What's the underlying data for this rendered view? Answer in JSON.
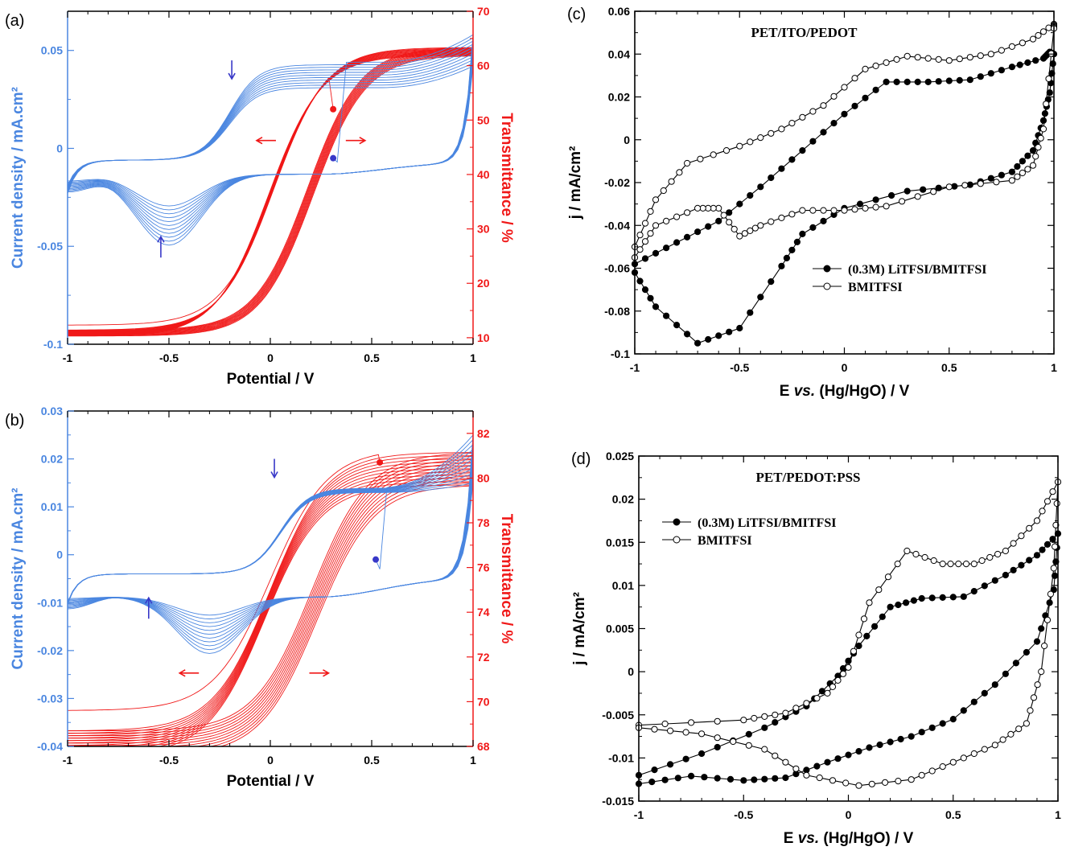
{
  "colors": {
    "blue": "#4a86e0",
    "red": "#f01818",
    "black": "#000000",
    "arrow_blue": "#3838c8"
  },
  "chart_data": [
    {
      "panel": "(a)",
      "type": "line",
      "xlabel": "Potential / V",
      "ylabel": "Current density / mA.cm²",
      "y2label": "Transmittance / %",
      "xlim": [
        -1,
        1
      ],
      "ylim": [
        -0.1,
        0.07
      ],
      "y2lim": [
        8.8,
        70
      ],
      "xticks": [
        "-1",
        "-0.5",
        "0",
        "0.5",
        "1"
      ],
      "yticks": [
        {
          "v": -0.1,
          "t": "-0.1"
        },
        {
          "v": -0.05,
          "t": "-0.05"
        },
        {
          "v": 0,
          "t": "0"
        },
        {
          "v": 0.05,
          "t": "0.05"
        }
      ],
      "y2ticks": [
        {
          "v": 10,
          "t": "10"
        },
        {
          "v": 20,
          "t": "20"
        },
        {
          "v": 30,
          "t": "30"
        },
        {
          "v": 40,
          "t": "40"
        },
        {
          "v": 50,
          "t": "50"
        },
        {
          "v": 60,
          "t": "60"
        },
        {
          "v": 70,
          "t": "70"
        }
      ],
      "cv": {
        "cycles": 11,
        "start": [
          0.31,
          -0.005
        ],
        "anodic": {
          "base": -0.006,
          "plateau_first": 0.044,
          "plateau_last": 0.031,
          "E_step": -0.2
        },
        "cathodic": {
          "peak_first": -0.047,
          "peak_last": -0.027,
          "E_peak": -0.5
        },
        "end_first": 0.058,
        "end_last": 0.042
      },
      "tr": {
        "cycles": 12,
        "start": [
          0.31,
          52
        ],
        "Tmin": 11.5,
        "Tmax": 63.5,
        "E_half_fwd": 0.18,
        "E_half_rev": 0.02,
        "width": 0.13
      },
      "annotations": [
        {
          "type": "arrow",
          "dir": "down",
          "x": -0.19,
          "y": 0.04,
          "color": "arrow_blue"
        },
        {
          "type": "arrow",
          "dir": "up",
          "x": -0.54,
          "y": -0.05,
          "color": "arrow_blue"
        },
        {
          "type": "arrow",
          "dir": "left",
          "x": -0.02,
          "y": 0.004,
          "color": "red"
        },
        {
          "type": "arrow",
          "dir": "right",
          "x": 0.42,
          "y": 0.004,
          "color": "red"
        }
      ]
    },
    {
      "panel": "(b)",
      "type": "line",
      "xlabel": "Potential / V",
      "ylabel": "Current density / mA.cm²",
      "y2label": "Transmittance / %",
      "xlim": [
        -1,
        1
      ],
      "ylim": [
        -0.04,
        0.03
      ],
      "y2lim": [
        68,
        83
      ],
      "xticks": [
        "-1",
        "-0.5",
        "0",
        "0.5",
        "1"
      ],
      "yticks": [
        {
          "v": -0.04,
          "t": "-0.04"
        },
        {
          "v": -0.03,
          "t": "-0.03"
        },
        {
          "v": -0.02,
          "t": "-0.02"
        },
        {
          "v": -0.01,
          "t": "-0.01"
        },
        {
          "v": 0,
          "t": "0"
        },
        {
          "v": 0.01,
          "t": "0.01"
        },
        {
          "v": 0.02,
          "t": "0.02"
        },
        {
          "v": 0.03,
          "t": "0.03"
        }
      ],
      "y2ticks": [
        {
          "v": 68,
          "t": "68"
        },
        {
          "v": 70,
          "t": "70"
        },
        {
          "v": 72,
          "t": "72"
        },
        {
          "v": 74,
          "t": "74"
        },
        {
          "v": 76,
          "t": "76"
        },
        {
          "v": 78,
          "t": "78"
        },
        {
          "v": 80,
          "t": "80"
        },
        {
          "v": 82,
          "t": "82"
        }
      ],
      "cv": {
        "cycles": 11,
        "start": [
          0.52,
          -0.001
        ],
        "anodic": {
          "base": -0.004,
          "plateau_first": 0.014,
          "plateau_last": 0.013,
          "E_step": 0.05
        },
        "cathodic": {
          "peak_first": -0.019,
          "peak_last": -0.011,
          "E_peak": -0.3
        },
        "end_first": 0.025,
        "end_last": 0.015
      },
      "tr": {
        "cycles": 12,
        "start": [
          0.54,
          80.7
        ],
        "Tmin": 68.8,
        "Tmax": 81.3,
        "E_half_fwd": 0.2,
        "E_half_rev": 0.0,
        "width": 0.14
      },
      "annotations": [
        {
          "type": "arrow",
          "dir": "down",
          "x": 0.02,
          "y": 0.018,
          "color": "arrow_blue"
        },
        {
          "type": "arrow",
          "dir": "up",
          "x": -0.6,
          "y": -0.011,
          "color": "arrow_blue"
        },
        {
          "type": "arrow",
          "dir": "left",
          "x": -0.4,
          "y": -0.0247,
          "color": "red"
        },
        {
          "type": "arrow",
          "dir": "right",
          "x": 0.24,
          "y": -0.0247,
          "color": "red"
        }
      ]
    },
    {
      "panel": "(c)",
      "type": "line",
      "title": "PET/ITO/PEDOT",
      "xlabel_parts": [
        "E ",
        "vs.",
        " (Hg/HgO) / V"
      ],
      "ylabel": "j / mA/cm²",
      "xlim": [
        -1,
        1
      ],
      "ylim": [
        -0.1,
        0.06
      ],
      "xticks": [
        "-1",
        "-0.5",
        "0",
        "0.5",
        "1"
      ],
      "yticks": [
        {
          "v": -0.1,
          "t": "-0.1"
        },
        {
          "v": -0.08,
          "t": "-0.08"
        },
        {
          "v": -0.06,
          "t": "-0.06"
        },
        {
          "v": -0.04,
          "t": "-0.04"
        },
        {
          "v": -0.02,
          "t": "-0.02"
        },
        {
          "v": 0,
          "t": "0"
        },
        {
          "v": 0.02,
          "t": "0.02"
        },
        {
          "v": 0.04,
          "t": "0.04"
        },
        {
          "v": 0.06,
          "t": "0.06"
        }
      ],
      "legend": [
        "(0.3M) LiTFSI/BMITFSI",
        "BMITFSI"
      ],
      "series": [
        {
          "name": "(0.3M) LiTFSI/BMITFSI",
          "marker": "filled",
          "forward": [
            [
              -1,
              -0.058
            ],
            [
              -0.8,
              -0.048
            ],
            [
              -0.6,
              -0.038
            ],
            [
              -0.4,
              -0.022
            ],
            [
              -0.2,
              -0.005
            ],
            [
              0,
              0.012
            ],
            [
              0.2,
              0.027
            ],
            [
              0.4,
              0.027
            ],
            [
              0.6,
              0.028
            ],
            [
              0.8,
              0.034
            ],
            [
              0.95,
              0.038
            ],
            [
              0.98,
              0.041
            ]
          ],
          "reverse": [
            [
              1,
              0.04
            ],
            [
              0.98,
              0.022
            ],
            [
              0.95,
              0.009
            ],
            [
              0.9,
              -0.005
            ],
            [
              0.8,
              -0.015
            ],
            [
              0.6,
              -0.021
            ],
            [
              0.3,
              -0.024
            ],
            [
              0,
              -0.032
            ],
            [
              -0.2,
              -0.044
            ],
            [
              -0.3,
              -0.059
            ],
            [
              -0.5,
              -0.088
            ],
            [
              -0.7,
              -0.095
            ],
            [
              -0.9,
              -0.078
            ],
            [
              -1,
              -0.062
            ]
          ]
        },
        {
          "name": "BMITFSI",
          "marker": "open",
          "forward": [
            [
              -1,
              -0.05
            ],
            [
              -0.9,
              -0.028
            ],
            [
              -0.75,
              -0.011
            ],
            [
              -0.5,
              -0.003
            ],
            [
              -0.3,
              0.005
            ],
            [
              -0.1,
              0.016
            ],
            [
              0.1,
              0.033
            ],
            [
              0.3,
              0.039
            ],
            [
              0.5,
              0.037
            ],
            [
              0.7,
              0.04
            ],
            [
              0.9,
              0.047
            ],
            [
              1,
              0.054
            ]
          ],
          "reverse": [
            [
              1,
              0.052
            ],
            [
              0.95,
              0.005
            ],
            [
              0.9,
              -0.012
            ],
            [
              0.8,
              -0.019
            ],
            [
              0.5,
              -0.022
            ],
            [
              0.2,
              -0.031
            ],
            [
              0,
              -0.033
            ],
            [
              -0.2,
              -0.033
            ],
            [
              -0.4,
              -0.04
            ],
            [
              -0.5,
              -0.045
            ],
            [
              -0.6,
              -0.032
            ],
            [
              -0.7,
              -0.032
            ],
            [
              -0.9,
              -0.04
            ],
            [
              -1,
              -0.055
            ]
          ]
        }
      ]
    },
    {
      "panel": "(d)",
      "type": "line",
      "title": "PET/PEDOT:PSS",
      "xlabel_parts": [
        "E ",
        "vs.",
        " (Hg/HgO) / V"
      ],
      "ylabel": "j / mA/cm²",
      "xlim": [
        -1,
        1
      ],
      "ylim": [
        -0.015,
        0.025
      ],
      "xticks": [
        "-1",
        "-0.5",
        "0",
        "0.5",
        "1"
      ],
      "yticks": [
        {
          "v": -0.015,
          "t": "-0.015"
        },
        {
          "v": -0.01,
          "t": "-0.01"
        },
        {
          "v": -0.005,
          "t": "-0.005"
        },
        {
          "v": 0,
          "t": "0"
        },
        {
          "v": 0.005,
          "t": "0.005"
        },
        {
          "v": 0.01,
          "t": "0.01"
        },
        {
          "v": 0.015,
          "t": "0.015"
        },
        {
          "v": 0.02,
          "t": "0.02"
        },
        {
          "v": 0.025,
          "t": "0.025"
        }
      ],
      "legend": [
        "(0.3M) LiTFSI/BMITFSI",
        "BMITFSI"
      ],
      "series": [
        {
          "name": "(0.3M) LiTFSI/BMITFSI",
          "marker": "filled",
          "forward": [
            [
              -1,
              -0.012
            ],
            [
              -0.7,
              -0.0095
            ],
            [
              -0.4,
              -0.0065
            ],
            [
              -0.2,
              -0.004
            ],
            [
              -0.05,
              -0.0005
            ],
            [
              0.05,
              0.003
            ],
            [
              0.2,
              0.0075
            ],
            [
              0.35,
              0.0085
            ],
            [
              0.55,
              0.0087
            ],
            [
              0.75,
              0.0112
            ],
            [
              0.9,
              0.0135
            ],
            [
              1,
              0.016
            ]
          ],
          "reverse": [
            [
              0.98,
              0.0095
            ],
            [
              0.9,
              0.0035
            ],
            [
              0.7,
              -0.0015
            ],
            [
              0.5,
              -0.0055
            ],
            [
              0.3,
              -0.0075
            ],
            [
              0.1,
              -0.0088
            ],
            [
              -0.1,
              -0.0105
            ],
            [
              -0.3,
              -0.0123
            ],
            [
              -0.5,
              -0.0126
            ],
            [
              -0.75,
              -0.0121
            ],
            [
              -1,
              -0.013
            ]
          ]
        },
        {
          "name": "BMITFSI",
          "marker": "open",
          "forward": [
            [
              -1,
              -0.0062
            ],
            [
              -0.5,
              -0.0056
            ],
            [
              -0.3,
              -0.0048
            ],
            [
              -0.1,
              -0.0025
            ],
            [
              0,
              0.0005
            ],
            [
              0.1,
              0.008
            ],
            [
              0.28,
              0.014
            ],
            [
              0.45,
              0.0125
            ],
            [
              0.6,
              0.0125
            ],
            [
              0.75,
              0.014
            ],
            [
              0.9,
              0.0175
            ],
            [
              1,
              0.022
            ]
          ],
          "reverse": [
            [
              0.98,
              0.012
            ],
            [
              0.92,
              0.0
            ],
            [
              0.85,
              -0.006
            ],
            [
              0.7,
              -0.0085
            ],
            [
              0.5,
              -0.0105
            ],
            [
              0.3,
              -0.0125
            ],
            [
              0.05,
              -0.0132
            ],
            [
              -0.2,
              -0.012
            ],
            [
              -0.4,
              -0.009
            ],
            [
              -0.7,
              -0.0072
            ],
            [
              -1,
              -0.0065
            ]
          ]
        }
      ]
    }
  ]
}
